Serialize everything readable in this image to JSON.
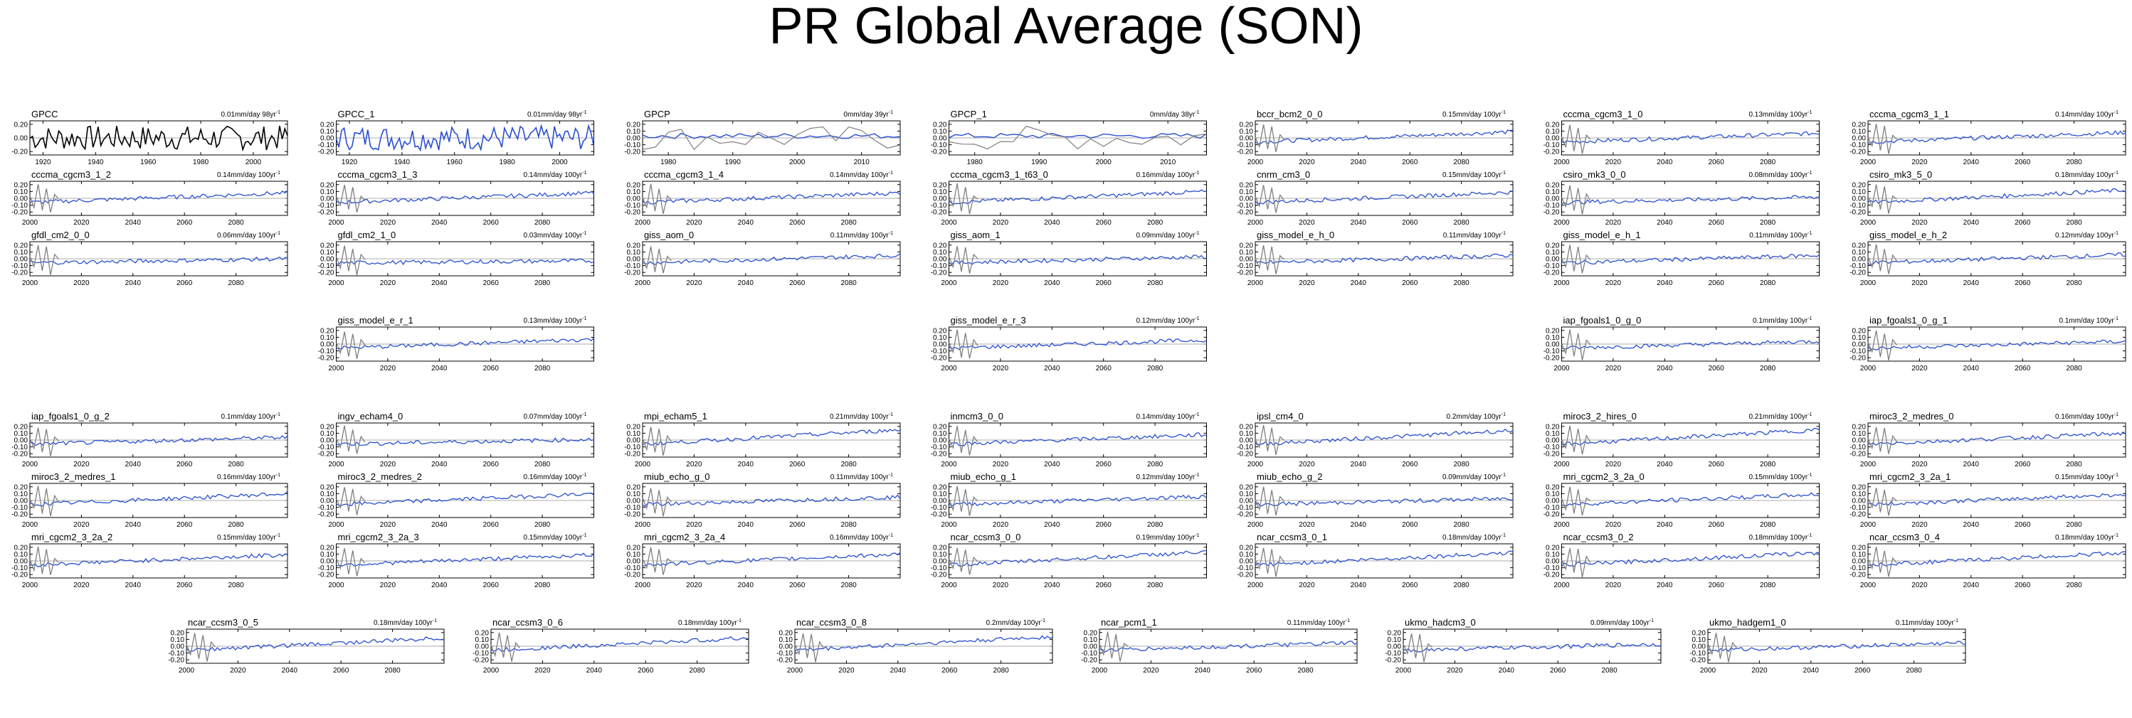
{
  "title": "PR Global Average (SON)",
  "chart_data": {
    "type": "line",
    "ylim": [
      -0.25,
      0.25
    ],
    "yticks": [
      "0.20",
      "0.10",
      "0.00",
      "-0.10",
      "-0.20"
    ],
    "yticks_obs": [
      "0.20",
      "0.00",
      "-0.20"
    ],
    "xticks_gpcc": [
      "1920",
      "1940",
      "1960",
      "1980",
      "2000"
    ],
    "xticks_gpcp": [
      "1980",
      "1990",
      "2000",
      "2010"
    ],
    "xticks_model": [
      "2000",
      "2020",
      "2040",
      "2060",
      "2080"
    ],
    "series_colors": {
      "observed": "#000000",
      "model": "#2a4fcf",
      "reference": "#808080",
      "zero": "#909090"
    },
    "panels": [
      {
        "name": "GPCC",
        "trend": "0.01mm/day 98yr",
        "kind": "gpcc_black"
      },
      {
        "name": "GPCC_1",
        "trend": "0.01mm/day 98yr",
        "kind": "gpcc_blue"
      },
      {
        "name": "GPCP",
        "trend": "0mm/day 39yr",
        "kind": "gpcp"
      },
      {
        "name": "GPCP_1",
        "trend": "0mm/day 38yr",
        "kind": "gpcp"
      },
      {
        "name": "bccr_bcm2_0_0",
        "trend": "0.15mm/day 100yr",
        "kind": "model"
      },
      {
        "name": "cccma_cgcm3_1_0",
        "trend": "0.13mm/day 100yr",
        "kind": "model"
      },
      {
        "name": "cccma_cgcm3_1_1",
        "trend": "0.14mm/day 100yr",
        "kind": "model"
      },
      {
        "name": "cccma_cgcm3_1_2",
        "trend": "0.14mm/day 100yr",
        "kind": "model"
      },
      {
        "name": "cccma_cgcm3_1_3",
        "trend": "0.14mm/day 100yr",
        "kind": "model"
      },
      {
        "name": "cccma_cgcm3_1_4",
        "trend": "0.14mm/day 100yr",
        "kind": "model"
      },
      {
        "name": "cccma_cgcm3_1_t63_0",
        "trend": "0.16mm/day 100yr",
        "kind": "model"
      },
      {
        "name": "cnrm_cm3_0",
        "trend": "0.15mm/day 100yr",
        "kind": "model"
      },
      {
        "name": "csiro_mk3_0_0",
        "trend": "0.08mm/day 100yr",
        "kind": "model"
      },
      {
        "name": "csiro_mk3_5_0",
        "trend": "0.18mm/day 100yr",
        "kind": "model"
      },
      {
        "name": "gfdl_cm2_0_0",
        "trend": "0.06mm/day 100yr",
        "kind": "model"
      },
      {
        "name": "gfdl_cm2_1_0",
        "trend": "0.03mm/day 100yr",
        "kind": "model"
      },
      {
        "name": "giss_aom_0",
        "trend": "0.11mm/day 100yr",
        "kind": "model"
      },
      {
        "name": "giss_aom_1",
        "trend": "0.09mm/day 100yr",
        "kind": "model"
      },
      {
        "name": "giss_model_e_h_0",
        "trend": "0.11mm/day 100yr",
        "kind": "model"
      },
      {
        "name": "giss_model_e_h_1",
        "trend": "0.11mm/day 100yr",
        "kind": "model"
      },
      {
        "name": "giss_model_e_h_2",
        "trend": "0.12mm/day 100yr",
        "kind": "model"
      },
      {
        "name": "giss_model_e_r_1",
        "trend": "0.13mm/day 100yr",
        "kind": "model"
      },
      {
        "name": "giss_model_e_r_3",
        "trend": "0.12mm/day 100yr",
        "kind": "model"
      },
      {
        "name": "iap_fgoals1_0_g_0",
        "trend": "0.1mm/day 100yr",
        "kind": "model"
      },
      {
        "name": "iap_fgoals1_0_g_1",
        "trend": "0.1mm/day 100yr",
        "kind": "model"
      },
      {
        "name": "iap_fgoals1_0_g_2",
        "trend": "0.1mm/day 100yr",
        "kind": "model"
      },
      {
        "name": "ingv_echam4_0",
        "trend": "0.07mm/day 100yr",
        "kind": "model"
      },
      {
        "name": "mpi_echam5_1",
        "trend": "0.21mm/day 100yr",
        "kind": "model"
      },
      {
        "name": "inmcm3_0_0",
        "trend": "0.14mm/day 100yr",
        "kind": "model"
      },
      {
        "name": "ipsl_cm4_0",
        "trend": "0.2mm/day 100yr",
        "kind": "model"
      },
      {
        "name": "miroc3_2_hires_0",
        "trend": "0.21mm/day 100yr",
        "kind": "model"
      },
      {
        "name": "miroc3_2_medres_0",
        "trend": "0.16mm/day 100yr",
        "kind": "model"
      },
      {
        "name": "miroc3_2_medres_1",
        "trend": "0.16mm/day 100yr",
        "kind": "model"
      },
      {
        "name": "miroc3_2_medres_2",
        "trend": "0.16mm/day 100yr",
        "kind": "model"
      },
      {
        "name": "miub_echo_g_0",
        "trend": "0.11mm/day 100yr",
        "kind": "model"
      },
      {
        "name": "miub_echo_g_1",
        "trend": "0.12mm/day 100yr",
        "kind": "model"
      },
      {
        "name": "miub_echo_g_2",
        "trend": "0.09mm/day 100yr",
        "kind": "model"
      },
      {
        "name": "mri_cgcm2_3_2a_0",
        "trend": "0.15mm/day 100yr",
        "kind": "model"
      },
      {
        "name": "mri_cgcm2_3_2a_1",
        "trend": "0.15mm/day 100yr",
        "kind": "model"
      },
      {
        "name": "mri_cgcm2_3_2a_2",
        "trend": "0.15mm/day 100yr",
        "kind": "model"
      },
      {
        "name": "mri_cgcm2_3_2a_3",
        "trend": "0.15mm/day 100yr",
        "kind": "model"
      },
      {
        "name": "mri_cgcm2_3_2a_4",
        "trend": "0.16mm/day 100yr",
        "kind": "model"
      },
      {
        "name": "ncar_ccsm3_0_0",
        "trend": "0.19mm/day 100yr",
        "kind": "model"
      },
      {
        "name": "ncar_ccsm3_0_1",
        "trend": "0.18mm/day 100yr",
        "kind": "model"
      },
      {
        "name": "ncar_ccsm3_0_2",
        "trend": "0.18mm/day 100yr",
        "kind": "model"
      },
      {
        "name": "ncar_ccsm3_0_4",
        "trend": "0.18mm/day 100yr",
        "kind": "model"
      },
      {
        "name": "ncar_ccsm3_0_5",
        "trend": "0.18mm/day 100yr",
        "kind": "model"
      },
      {
        "name": "ncar_ccsm3_0_6",
        "trend": "0.18mm/day 100yr",
        "kind": "model"
      },
      {
        "name": "ncar_ccsm3_0_8",
        "trend": "0.2mm/day 100yr",
        "kind": "model"
      },
      {
        "name": "ncar_pcm1_1",
        "trend": "0.11mm/day 100yr",
        "kind": "model"
      },
      {
        "name": "ukmo_hadcm3_0",
        "trend": "0.09mm/day 100yr",
        "kind": "model"
      },
      {
        "name": "ukmo_hadgem1_0",
        "trend": "0.11mm/day 100yr",
        "kind": "model"
      }
    ]
  }
}
